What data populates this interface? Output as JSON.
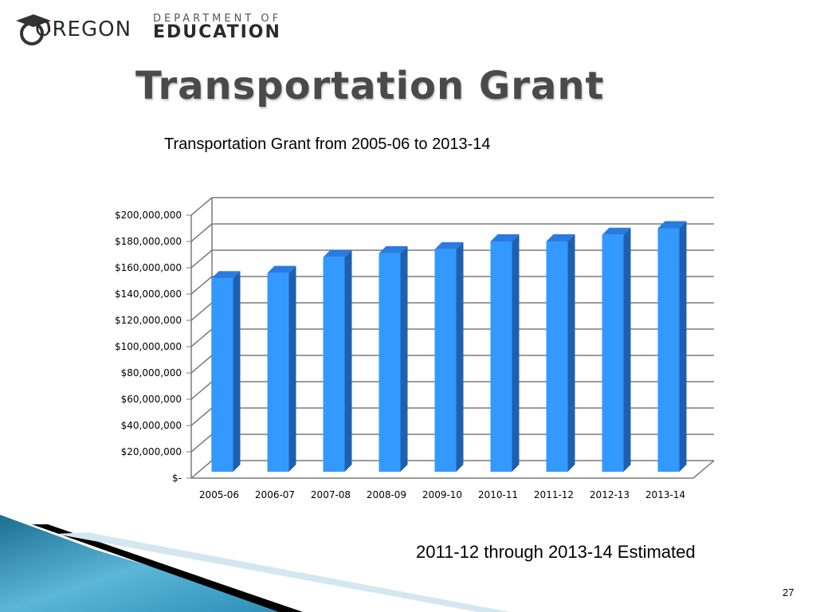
{
  "header": {
    "logo_word": "OREGON",
    "logo_dept": "DEPARTMENT OF",
    "logo_edu": "EDUCATION"
  },
  "slide": {
    "title": "Transportation Grant",
    "footnote": "2011-12 through 2013-14 Estimated",
    "page_number": "27"
  },
  "colors": {
    "bar_front": "#3399ff",
    "bar_side": "#1f5fb0",
    "bar_top": "#2a7be0",
    "grid": "#7a7a7a"
  },
  "chart_data": {
    "type": "bar",
    "title": "Transportation Grant from 2005-06 to 2013-14",
    "xlabel": "",
    "ylabel": "",
    "categories": [
      "2005-06",
      "2006-07",
      "2007-08",
      "2008-09",
      "2009-10",
      "2010-11",
      "2011-12",
      "2012-13",
      "2013-14"
    ],
    "values": [
      152000000,
      156000000,
      168000000,
      171000000,
      174000000,
      180000000,
      180000000,
      185000000,
      190000000
    ],
    "ylim": [
      0,
      200000000
    ],
    "yticks": [
      "$-",
      "$20,000,000",
      "$40,000,000",
      "$60,000,000",
      "$80,000,000",
      "$100,000,000",
      "$120,000,000",
      "$140,000,000",
      "$160,000,000",
      "$180,000,000",
      "$200,000,000"
    ],
    "grid": true,
    "legend": "none",
    "style": "3d-column"
  }
}
